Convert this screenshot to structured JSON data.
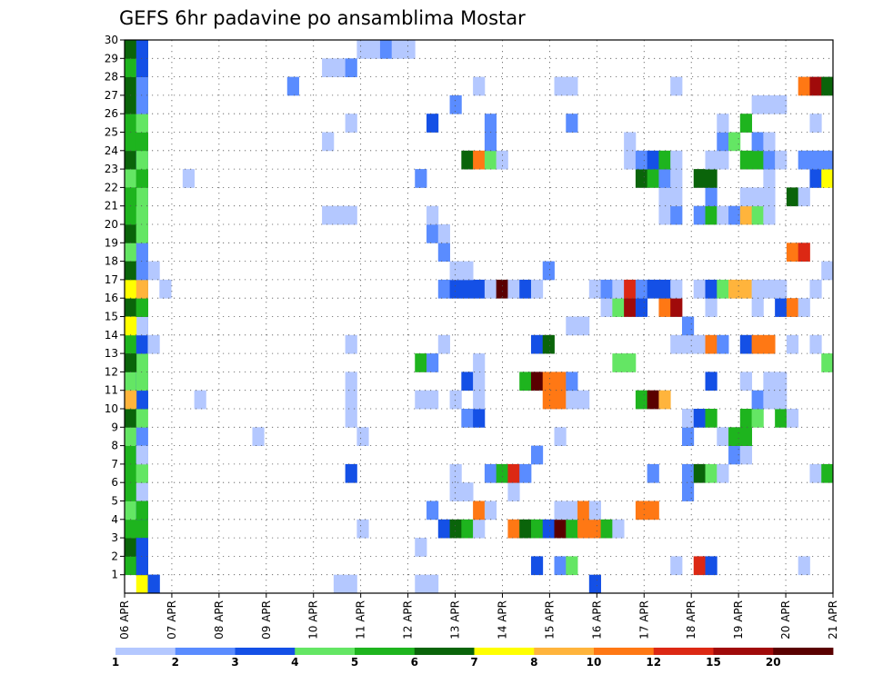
{
  "chart_data": {
    "type": "heatmap",
    "title": "GEFS 6hr padavine po ansamblima Mostar",
    "y_labels": [
      "1",
      "2",
      "3",
      "4",
      "5",
      "6",
      "7",
      "8",
      "9",
      "10",
      "11",
      "12",
      "13",
      "14",
      "15",
      "16",
      "17",
      "18",
      "19",
      "20",
      "21",
      "22",
      "23",
      "24",
      "25",
      "26",
      "27",
      "28",
      "29",
      "30"
    ],
    "x_labels": [
      "06 APR",
      "07 APR",
      "08 APR",
      "09 APR",
      "10 APR",
      "11 APR",
      "12 APR",
      "13 APR",
      "14 APR",
      "15 APR",
      "16 APR",
      "17 APR",
      "18 APR",
      "19 APR",
      "20 APR",
      "21 APR"
    ],
    "time_steps": 61,
    "grid": true,
    "legend": {
      "placement": "bottom",
      "labels": [
        "1",
        "2",
        "3",
        "4",
        "5",
        "6",
        "7",
        "8",
        "10",
        "12",
        "15",
        "20"
      ],
      "colors": [
        "#b4c8ff",
        "#5a8cff",
        "#1450e6",
        "#64e664",
        "#1eb41e",
        "#0a640a",
        "#ffff00",
        "#ffb43c",
        "#ff7814",
        "#dc2814",
        "#a00a0a",
        "#5a0000"
      ]
    },
    "cells": [
      [
        1,
        2,
        7
      ],
      [
        1,
        3,
        3
      ],
      [
        2,
        1,
        5
      ],
      [
        2,
        2,
        6
      ],
      [
        3,
        1,
        6
      ],
      [
        3,
        2,
        3
      ],
      [
        4,
        1,
        5
      ],
      [
        4,
        2,
        5
      ],
      [
        5,
        1,
        4
      ],
      [
        5,
        2,
        3
      ],
      [
        6,
        1,
        5
      ],
      [
        6,
        2,
        1
      ],
      [
        7,
        1,
        5
      ],
      [
        7,
        2,
        4
      ],
      [
        8,
        1,
        5
      ],
      [
        8,
        2,
        2
      ],
      [
        9,
        1,
        4
      ],
      [
        9,
        2,
        2
      ],
      [
        10,
        1,
        6
      ],
      [
        10,
        2,
        4
      ],
      [
        11,
        1,
        5
      ],
      [
        11,
        2,
        5
      ],
      [
        12,
        1,
        4
      ],
      [
        12,
        2,
        3
      ],
      [
        13,
        1,
        4
      ],
      [
        13,
        2,
        2
      ],
      [
        14,
        1,
        5
      ],
      [
        14,
        2,
        5
      ],
      [
        15,
        1,
        5
      ],
      [
        15,
        2,
        3
      ],
      [
        16,
        1,
        6
      ],
      [
        16,
        2,
        6
      ],
      [
        17,
        1,
        6
      ],
      [
        17,
        2,
        5
      ],
      [
        18,
        1,
        4
      ],
      [
        18,
        2,
        4
      ],
      [
        19,
        1,
        4
      ],
      [
        19,
        2,
        4
      ],
      [
        20,
        1,
        6
      ],
      [
        20,
        2,
        5
      ],
      [
        21,
        1,
        5
      ],
      [
        21,
        2,
        5
      ],
      [
        22,
        1,
        5
      ],
      [
        22,
        2,
        3
      ],
      [
        23,
        1,
        4
      ],
      [
        23,
        2,
        5
      ],
      [
        24,
        1,
        6
      ],
      [
        24,
        2,
        3
      ],
      [
        25,
        1,
        5
      ],
      [
        25,
        2,
        5
      ],
      [
        26,
        1,
        5
      ],
      [
        26,
        2,
        4
      ],
      [
        27,
        1,
        6
      ],
      [
        27,
        2,
        5
      ],
      [
        28,
        1,
        6
      ],
      [
        28,
        2,
        5
      ],
      [
        29,
        1,
        5
      ],
      [
        29,
        2,
        4
      ],
      [
        30,
        1,
        6
      ],
      [
        30,
        2,
        6
      ],
      [
        1,
        3,
        3
      ],
      [
        2,
        2,
        3
      ],
      [
        3,
        2,
        3
      ],
      [
        5,
        2,
        5
      ],
      [
        7,
        2,
        4
      ],
      [
        8,
        2,
        1
      ],
      [
        11,
        2,
        3
      ],
      [
        12,
        2,
        4
      ],
      [
        13,
        2,
        4
      ],
      [
        14,
        2,
        3
      ],
      [
        15,
        2,
        1
      ],
      [
        16,
        2,
        5
      ],
      [
        17,
        2,
        3
      ],
      [
        18,
        2,
        7
      ],
      [
        18,
        3,
        1
      ],
      [
        19,
        2,
        2
      ],
      [
        20,
        2,
        4
      ],
      [
        21,
        2,
        4
      ],
      [
        22,
        2,
        4
      ],
      [
        23,
        2,
        5
      ],
      [
        24,
        2,
        4
      ],
      [
        25,
        2,
        5
      ],
      [
        26,
        2,
        4
      ],
      [
        27,
        2,
        2
      ],
      [
        28,
        2,
        2
      ],
      [
        29,
        2,
        3
      ],
      [
        30,
        2,
        3
      ],
      [
        1,
        19,
        1
      ],
      [
        1,
        26,
        1
      ],
      [
        1,
        27,
        1
      ],
      [
        1,
        41,
        3
      ],
      [
        1,
        20,
        1
      ],
      [
        2,
        36,
        3
      ],
      [
        2,
        38,
        2
      ],
      [
        2,
        39,
        4
      ],
      [
        2,
        48,
        1
      ],
      [
        2,
        50,
        10
      ],
      [
        2,
        51,
        3
      ],
      [
        2,
        59,
        1
      ],
      [
        3,
        26,
        1
      ],
      [
        4,
        21,
        1
      ],
      [
        4,
        28,
        3
      ],
      [
        4,
        29,
        6
      ],
      [
        4,
        30,
        5
      ],
      [
        4,
        31,
        1
      ],
      [
        4,
        34,
        9
      ],
      [
        4,
        35,
        6
      ],
      [
        4,
        36,
        5
      ],
      [
        4,
        37,
        3
      ],
      [
        4,
        38,
        12
      ],
      [
        4,
        39,
        5
      ],
      [
        4,
        40,
        9
      ],
      [
        4,
        41,
        9
      ],
      [
        4,
        42,
        5
      ],
      [
        4,
        43,
        1
      ],
      [
        5,
        27,
        2
      ],
      [
        5,
        31,
        9
      ],
      [
        5,
        32,
        1
      ],
      [
        5,
        38,
        1
      ],
      [
        5,
        39,
        1
      ],
      [
        5,
        40,
        9
      ],
      [
        5,
        41,
        1
      ],
      [
        5,
        45,
        9
      ],
      [
        5,
        46,
        9
      ],
      [
        6,
        29,
        1
      ],
      [
        6,
        30,
        1
      ],
      [
        6,
        34,
        1
      ],
      [
        6,
        49,
        2
      ],
      [
        7,
        20,
        3
      ],
      [
        7,
        29,
        1
      ],
      [
        7,
        32,
        2
      ],
      [
        7,
        33,
        5
      ],
      [
        7,
        34,
        10
      ],
      [
        7,
        35,
        2
      ],
      [
        7,
        46,
        2
      ],
      [
        7,
        49,
        2
      ],
      [
        7,
        50,
        6
      ],
      [
        7,
        51,
        4
      ],
      [
        7,
        52,
        1
      ],
      [
        7,
        60,
        1
      ],
      [
        7,
        61,
        5
      ],
      [
        8,
        36,
        2
      ],
      [
        8,
        53,
        2
      ],
      [
        8,
        54,
        1
      ],
      [
        9,
        12,
        1
      ],
      [
        9,
        21,
        1
      ],
      [
        9,
        38,
        1
      ],
      [
        9,
        49,
        2
      ],
      [
        9,
        52,
        1
      ],
      [
        9,
        53,
        5
      ],
      [
        9,
        54,
        5
      ],
      [
        10,
        20,
        1
      ],
      [
        10,
        30,
        2
      ],
      [
        10,
        31,
        3
      ],
      [
        10,
        49,
        1
      ],
      [
        10,
        50,
        3
      ],
      [
        10,
        51,
        5
      ],
      [
        10,
        54,
        5
      ],
      [
        10,
        55,
        4
      ],
      [
        10,
        57,
        5
      ],
      [
        10,
        58,
        1
      ],
      [
        11,
        1,
        8
      ],
      [
        11,
        7,
        1
      ],
      [
        11,
        20,
        1
      ],
      [
        11,
        26,
        1
      ],
      [
        11,
        27,
        1
      ],
      [
        11,
        29,
        1
      ],
      [
        11,
        31,
        1
      ],
      [
        11,
        37,
        9
      ],
      [
        11,
        38,
        9
      ],
      [
        11,
        39,
        1
      ],
      [
        11,
        40,
        1
      ],
      [
        11,
        45,
        5
      ],
      [
        11,
        46,
        12
      ],
      [
        11,
        47,
        8
      ],
      [
        11,
        55,
        2
      ],
      [
        11,
        56,
        1
      ],
      [
        11,
        57,
        1
      ],
      [
        12,
        20,
        1
      ],
      [
        12,
        30,
        3
      ],
      [
        12,
        31,
        1
      ],
      [
        12,
        35,
        5
      ],
      [
        12,
        36,
        12
      ],
      [
        12,
        37,
        9
      ],
      [
        12,
        38,
        9
      ],
      [
        12,
        39,
        2
      ],
      [
        12,
        51,
        3
      ],
      [
        12,
        54,
        1
      ],
      [
        12,
        56,
        1
      ],
      [
        12,
        57,
        1
      ],
      [
        13,
        1,
        6
      ],
      [
        13,
        26,
        5
      ],
      [
        13,
        27,
        2
      ],
      [
        13,
        31,
        1
      ],
      [
        13,
        43,
        4
      ],
      [
        13,
        44,
        4
      ],
      [
        13,
        61,
        4
      ],
      [
        14,
        3,
        1
      ],
      [
        14,
        20,
        1
      ],
      [
        14,
        28,
        1
      ],
      [
        14,
        36,
        3
      ],
      [
        14,
        37,
        6
      ],
      [
        14,
        48,
        1
      ],
      [
        14,
        49,
        1
      ],
      [
        14,
        50,
        1
      ],
      [
        14,
        51,
        9
      ],
      [
        14,
        52,
        2
      ],
      [
        14,
        54,
        3
      ],
      [
        14,
        55,
        9
      ],
      [
        14,
        56,
        9
      ],
      [
        14,
        58,
        1
      ],
      [
        14,
        60,
        1
      ],
      [
        15,
        1,
        7
      ],
      [
        15,
        39,
        1
      ],
      [
        15,
        40,
        1
      ],
      [
        15,
        49,
        2
      ],
      [
        16,
        2,
        5
      ],
      [
        16,
        42,
        1
      ],
      [
        16,
        43,
        4
      ],
      [
        16,
        44,
        11
      ],
      [
        16,
        45,
        3
      ],
      [
        16,
        47,
        9
      ],
      [
        16,
        48,
        11
      ],
      [
        16,
        51,
        1
      ],
      [
        16,
        55,
        1
      ],
      [
        16,
        57,
        3
      ],
      [
        16,
        58,
        9
      ],
      [
        16,
        59,
        1
      ],
      [
        17,
        1,
        7
      ],
      [
        17,
        2,
        8
      ],
      [
        17,
        4,
        1
      ],
      [
        17,
        28,
        2
      ],
      [
        17,
        29,
        3
      ],
      [
        17,
        30,
        3
      ],
      [
        17,
        31,
        3
      ],
      [
        17,
        32,
        1
      ],
      [
        17,
        33,
        12
      ],
      [
        17,
        34,
        1
      ],
      [
        17,
        35,
        3
      ],
      [
        17,
        36,
        1
      ],
      [
        17,
        41,
        1
      ],
      [
        17,
        42,
        2
      ],
      [
        17,
        43,
        1
      ],
      [
        17,
        44,
        10
      ],
      [
        17,
        45,
        2
      ],
      [
        17,
        46,
        3
      ],
      [
        17,
        47,
        3
      ],
      [
        17,
        48,
        1
      ],
      [
        17,
        50,
        1
      ],
      [
        17,
        51,
        3
      ],
      [
        17,
        52,
        4
      ],
      [
        17,
        53,
        8
      ],
      [
        17,
        54,
        8
      ],
      [
        17,
        55,
        1
      ],
      [
        17,
        56,
        1
      ],
      [
        17,
        57,
        1
      ],
      [
        17,
        60,
        1
      ],
      [
        18,
        1,
        6
      ],
      [
        18,
        2,
        2
      ],
      [
        18,
        29,
        1
      ],
      [
        18,
        30,
        1
      ],
      [
        18,
        37,
        2
      ],
      [
        18,
        61,
        1
      ],
      [
        19,
        28,
        2
      ],
      [
        19,
        58,
        9
      ],
      [
        19,
        59,
        10
      ],
      [
        20,
        27,
        2
      ],
      [
        20,
        28,
        1
      ],
      [
        21,
        18,
        1
      ],
      [
        21,
        19,
        1
      ],
      [
        21,
        20,
        1
      ],
      [
        21,
        27,
        1
      ],
      [
        21,
        47,
        1
      ],
      [
        21,
        48,
        2
      ],
      [
        21,
        50,
        2
      ],
      [
        21,
        51,
        5
      ],
      [
        21,
        52,
        1
      ],
      [
        21,
        53,
        2
      ],
      [
        21,
        54,
        8
      ],
      [
        21,
        55,
        4
      ],
      [
        21,
        56,
        1
      ],
      [
        22,
        1,
        5
      ],
      [
        22,
        47,
        1
      ],
      [
        22,
        48,
        1
      ],
      [
        22,
        51,
        2
      ],
      [
        22,
        54,
        1
      ],
      [
        22,
        55,
        1
      ],
      [
        22,
        56,
        1
      ],
      [
        22,
        58,
        6
      ],
      [
        22,
        59,
        1
      ],
      [
        23,
        6,
        1
      ],
      [
        23,
        26,
        2
      ],
      [
        23,
        45,
        6
      ],
      [
        23,
        46,
        5
      ],
      [
        23,
        47,
        2
      ],
      [
        23,
        48,
        1
      ],
      [
        23,
        50,
        6
      ],
      [
        23,
        51,
        6
      ],
      [
        23,
        56,
        1
      ],
      [
        23,
        60,
        3
      ],
      [
        23,
        61,
        7
      ],
      [
        24,
        30,
        6
      ],
      [
        24,
        31,
        9
      ],
      [
        24,
        32,
        4
      ],
      [
        24,
        33,
        1
      ],
      [
        24,
        44,
        1
      ],
      [
        24,
        45,
        2
      ],
      [
        24,
        46,
        3
      ],
      [
        24,
        47,
        5
      ],
      [
        24,
        48,
        1
      ],
      [
        24,
        51,
        1
      ],
      [
        24,
        52,
        1
      ],
      [
        24,
        54,
        5
      ],
      [
        24,
        55,
        5
      ],
      [
        24,
        56,
        2
      ],
      [
        24,
        57,
        1
      ],
      [
        24,
        59,
        2
      ],
      [
        24,
        60,
        2
      ],
      [
        24,
        61,
        2
      ],
      [
        25,
        18,
        1
      ],
      [
        25,
        32,
        2
      ],
      [
        25,
        44,
        1
      ],
      [
        25,
        52,
        2
      ],
      [
        25,
        53,
        4
      ],
      [
        25,
        55,
        2
      ],
      [
        25,
        56,
        1
      ],
      [
        26,
        20,
        1
      ],
      [
        26,
        27,
        3
      ],
      [
        26,
        32,
        2
      ],
      [
        26,
        39,
        2
      ],
      [
        26,
        52,
        1
      ],
      [
        26,
        54,
        5
      ],
      [
        26,
        60,
        1
      ],
      [
        27,
        29,
        2
      ],
      [
        27,
        55,
        1
      ],
      [
        27,
        56,
        1
      ],
      [
        27,
        57,
        1
      ],
      [
        28,
        15,
        2
      ],
      [
        28,
        31,
        1
      ],
      [
        28,
        38,
        1
      ],
      [
        28,
        39,
        1
      ],
      [
        28,
        48,
        1
      ],
      [
        28,
        59,
        9
      ],
      [
        28,
        60,
        11
      ],
      [
        28,
        61,
        6
      ],
      [
        29,
        18,
        1
      ],
      [
        29,
        19,
        1
      ],
      [
        29,
        20,
        2
      ],
      [
        30,
        21,
        1
      ],
      [
        30,
        22,
        1
      ],
      [
        30,
        23,
        2
      ],
      [
        30,
        24,
        1
      ],
      [
        30,
        25,
        1
      ]
    ]
  }
}
